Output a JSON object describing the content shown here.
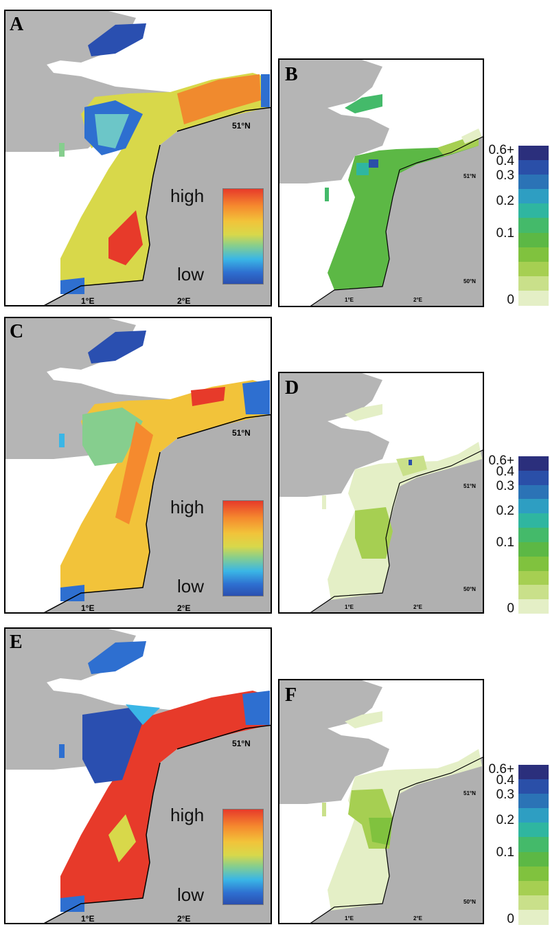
{
  "panels": [
    {
      "id": "A",
      "label": "A",
      "kind": "continuous"
    },
    {
      "id": "B",
      "label": "B",
      "kind": "discrete"
    },
    {
      "id": "C",
      "label": "C",
      "kind": "continuous"
    },
    {
      "id": "D",
      "label": "D",
      "kind": "discrete"
    },
    {
      "id": "E",
      "label": "E",
      "kind": "continuous"
    },
    {
      "id": "F",
      "label": "F",
      "kind": "discrete"
    }
  ],
  "axis_labels": {
    "lon_1": "1°E",
    "lon_2": "2°E",
    "lat_51": "51°N",
    "lat_50": "50°N"
  },
  "continuous_legend": {
    "high": "high",
    "low": "low"
  },
  "discrete_legend": {
    "labels": [
      "0.6+",
      "0.4",
      "0.3",
      "0.2",
      "0.1",
      "0"
    ],
    "colors": [
      "#2b2f7c",
      "#2a4fa8",
      "#2b73b6",
      "#2e9ec2",
      "#2fb6a0",
      "#44ba6a",
      "#5cb845",
      "#80c23e",
      "#a6cf52",
      "#c9e08a",
      "#e4efc6"
    ]
  },
  "colors": {
    "land": "#a9a9a9",
    "land_light": "#c8c8c8",
    "coast": "#000000"
  }
}
